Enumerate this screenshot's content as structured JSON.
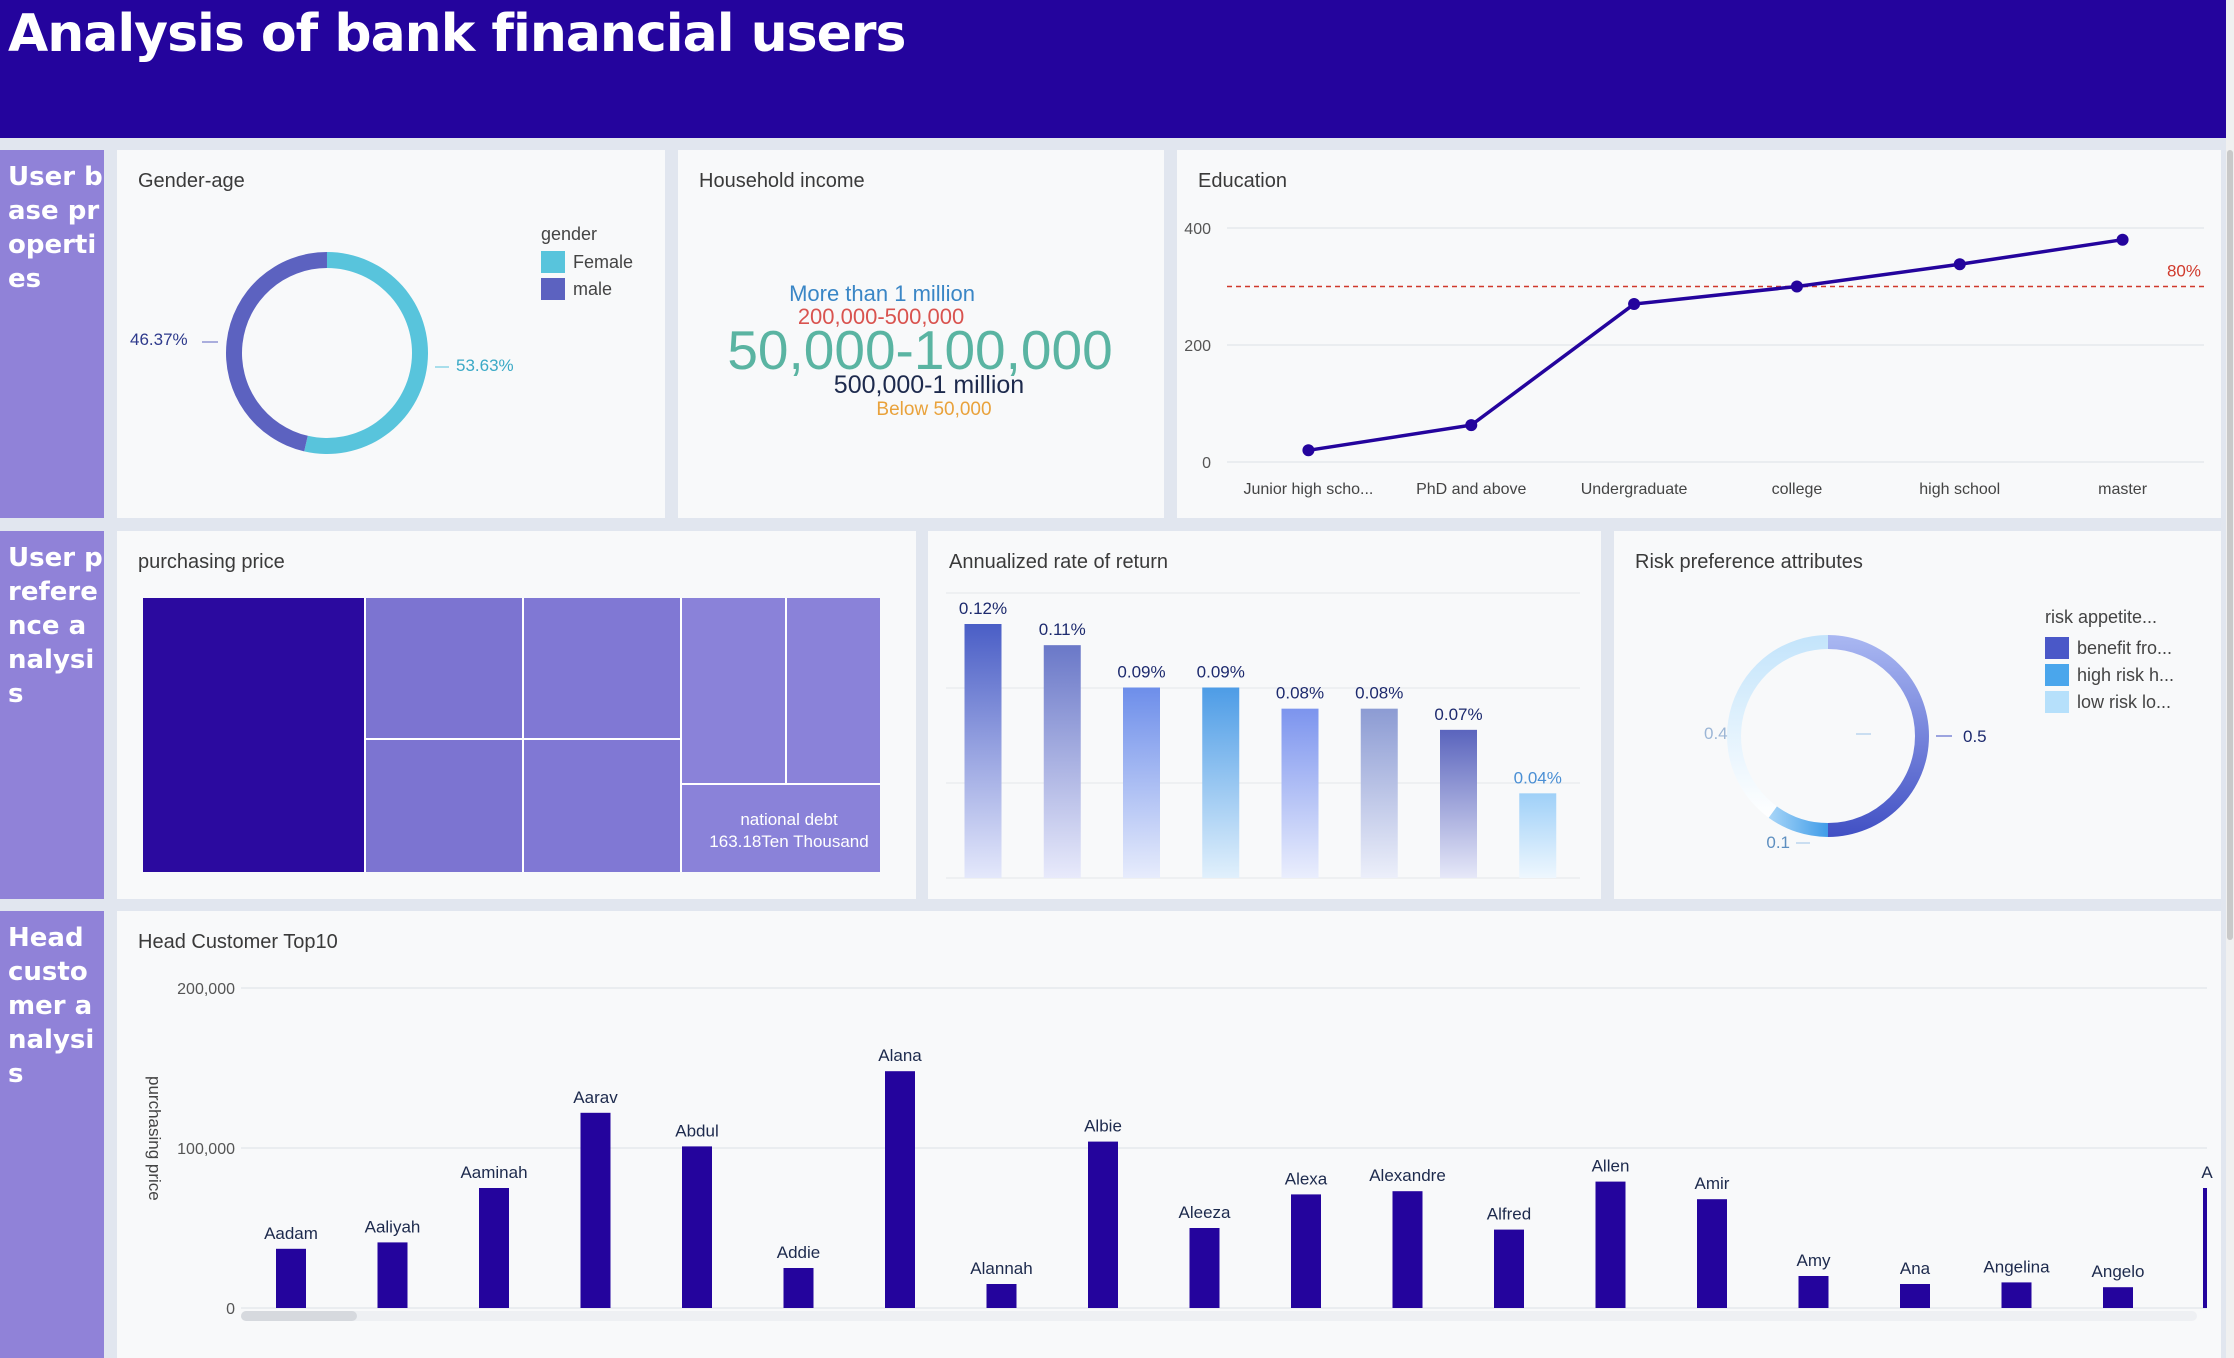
{
  "header": {
    "title": "Analysis of bank financial users"
  },
  "sections": {
    "user_base": "User base properties",
    "user_preference": "User preference analysis",
    "head_customer": "Head customer analysis"
  },
  "panels": {
    "gender_age": {
      "title": "Gender-age",
      "legend_title": "gender",
      "legend": [
        "Female",
        "male"
      ],
      "colors": {
        "Female": "#58c4dc",
        "male": "#5c62c0"
      },
      "label_female": "53.63%",
      "label_male": "46.37%"
    },
    "household_income": {
      "title": "Household income",
      "words": [
        {
          "text": "More than 1 million",
          "color": "#3a86c6"
        },
        {
          "text": "200,000-500,000",
          "color": "#d9534f"
        },
        {
          "text": "50,000-100,000",
          "color": "#5ab4a2"
        },
        {
          "text": "500,000-1 million",
          "color": "#1d2a4d"
        },
        {
          "text": "Below 50,000",
          "color": "#e9a23b"
        }
      ]
    },
    "education": {
      "title": "Education",
      "marker_label": "80%"
    },
    "purchasing_price": {
      "title": "purchasing price",
      "tile_label": "national debt",
      "tile_value": "163.18Ten Thousand"
    },
    "annualized_return": {
      "title": "Annualized rate of return"
    },
    "risk_preference": {
      "title": "Risk preference attributes",
      "legend_title": "risk appetite...",
      "legend": [
        "benefit fro...",
        "high risk h...",
        "low risk lo..."
      ],
      "colors": [
        "#4a58c8",
        "#4aa6ec",
        "#b6e0fb"
      ],
      "labels": [
        "0.5",
        "0.1",
        "0.4"
      ]
    },
    "head_customer": {
      "title": "Head Customer Top10",
      "ylabel": "purchasing price"
    }
  },
  "chart_data": [
    {
      "type": "pie",
      "title": "Gender-age",
      "categories": [
        "Female",
        "male"
      ],
      "values": [
        53.63,
        46.37
      ]
    },
    {
      "type": "line",
      "title": "Education",
      "categories": [
        "Junior high scho...",
        "PhD and above",
        "Undergraduate",
        "college",
        "high school",
        "master"
      ],
      "values": [
        20,
        63,
        270,
        300,
        338,
        380
      ],
      "ylim": [
        0,
        400
      ],
      "yticks": [
        "0",
        "200",
        "400"
      ],
      "reference_line": {
        "label": "80%",
        "value": 300
      },
      "grid": true
    },
    {
      "type": "bar",
      "title": "Annualized rate of return",
      "values": [
        0.12,
        0.11,
        0.09,
        0.09,
        0.08,
        0.08,
        0.07,
        0.04
      ],
      "labels": [
        "0.12%",
        "0.11%",
        "0.09%",
        "0.09%",
        "0.08%",
        "0.08%",
        "0.07%",
        "0.04%"
      ],
      "ylim": [
        0,
        0.13
      ]
    },
    {
      "type": "pie",
      "title": "Risk preference attributes",
      "categories": [
        "benefit fro...",
        "high risk h...",
        "low risk lo..."
      ],
      "values": [
        0.5,
        0.1,
        0.4
      ]
    },
    {
      "type": "bar",
      "title": "Head Customer Top10",
      "ylabel": "purchasing price",
      "categories": [
        "Aadam",
        "Aaliyah",
        "Aaminah",
        "Aarav",
        "Abdul",
        "Addie",
        "Alana",
        "Alannah",
        "Albie",
        "Aleeza",
        "Alexa",
        "Alexandre",
        "Alfred",
        "Allen",
        "Amir",
        "Amy",
        "Ana",
        "Angelina",
        "Angelo",
        "A"
      ],
      "values": [
        37000,
        41000,
        75000,
        122000,
        101000,
        25000,
        148000,
        15000,
        104000,
        50000,
        71000,
        73000,
        49000,
        79000,
        68000,
        20000,
        15000,
        16000,
        13000,
        75000
      ],
      "ylim": [
        0,
        200000
      ],
      "yticks": [
        "0",
        "100,000",
        "200,000"
      ]
    }
  ]
}
